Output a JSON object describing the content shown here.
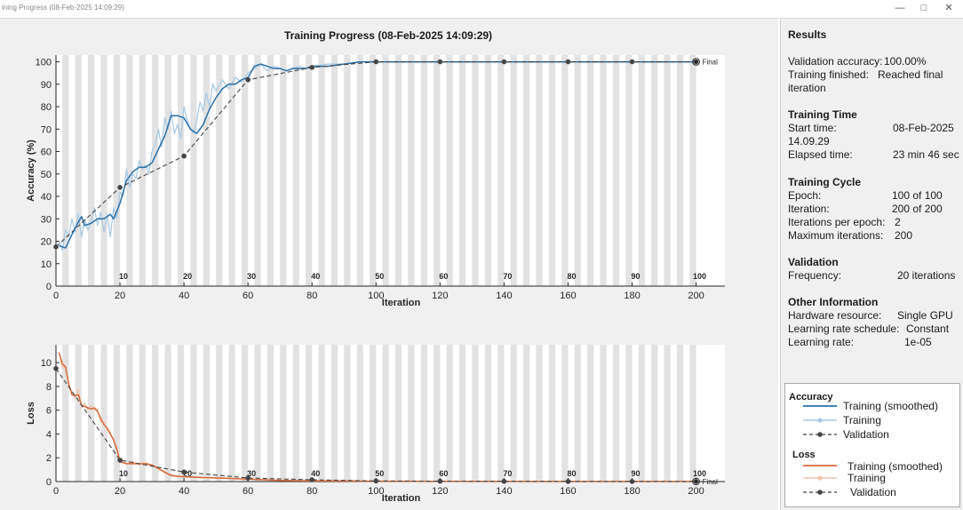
{
  "window": {
    "title": "ining Progress (08-Feb-2025 14:09:29)",
    "minimize_icon": "minimize-icon",
    "maximize_icon": "maximize-icon",
    "close_icon": "close-icon"
  },
  "chart_data": [
    {
      "type": "line",
      "title": "Training Progress (08-Feb-2025 14:09:29)",
      "xlabel": "Iteration",
      "ylabel": "Accuracy (%)",
      "xlim": [
        0,
        209
      ],
      "ylim": [
        0,
        103
      ],
      "xticks": [
        0,
        20,
        40,
        60,
        80,
        100,
        120,
        140,
        160,
        180,
        200
      ],
      "yticks": [
        0,
        10,
        20,
        30,
        40,
        50,
        60,
        70,
        80,
        90,
        100
      ],
      "epoch_labels": [
        "10",
        "20",
        "30",
        "40",
        "50",
        "60",
        "70",
        "80",
        "90",
        "100"
      ],
      "final_label": "Final",
      "grid": false,
      "series": [
        {
          "name": "Training (smoothed)",
          "color": "#2a6fa8",
          "x": [
            1,
            3,
            5,
            6,
            8,
            9,
            11,
            13,
            15,
            17,
            18,
            20,
            22,
            24,
            26,
            28,
            30,
            32,
            34,
            36,
            38,
            40,
            42,
            44,
            46,
            48,
            50,
            52,
            54,
            56,
            58,
            60,
            62,
            64,
            66,
            68,
            70,
            72,
            74,
            76,
            78,
            80,
            85,
            90,
            95,
            100,
            200
          ],
          "y": [
            18,
            17,
            23,
            26,
            31,
            27,
            28,
            30,
            30,
            32,
            30,
            37,
            47,
            51,
            53,
            53,
            55,
            61,
            67,
            76,
            76,
            75,
            70,
            68,
            72,
            79,
            84,
            88,
            90,
            90,
            92,
            93,
            98,
            99,
            98,
            97,
            97,
            96,
            97,
            97,
            97,
            98,
            98,
            99,
            100,
            100,
            100
          ]
        },
        {
          "name": "Training",
          "color": "#a6c8e4",
          "x": [
            1,
            2,
            3,
            4,
            5,
            6,
            7,
            8,
            9,
            10,
            11,
            12,
            13,
            14,
            15,
            16,
            17,
            18,
            19,
            20,
            21,
            22,
            23,
            24,
            25,
            26,
            27,
            28,
            29,
            30,
            31,
            32,
            33,
            34,
            35,
            36,
            37,
            38,
            39,
            40,
            41,
            42,
            43,
            44,
            45,
            46,
            47,
            48,
            49,
            50,
            52,
            54,
            56,
            58,
            60,
            62,
            64,
            66,
            68,
            70,
            72,
            74,
            76,
            78,
            80,
            85,
            90,
            95,
            100,
            200
          ],
          "y": [
            20,
            16,
            25,
            22,
            30,
            24,
            32,
            22,
            30,
            25,
            29,
            35,
            27,
            33,
            24,
            32,
            22,
            35,
            30,
            42,
            40,
            52,
            44,
            50,
            48,
            56,
            52,
            54,
            50,
            60,
            63,
            70,
            62,
            75,
            70,
            78,
            68,
            72,
            66,
            80,
            74,
            70,
            68,
            74,
            82,
            78,
            86,
            80,
            90,
            87,
            92,
            88,
            93,
            91,
            95,
            97,
            99,
            96,
            98,
            97,
            96,
            97,
            98,
            97,
            98,
            99,
            99,
            100,
            100,
            100
          ]
        },
        {
          "name": "Validation",
          "color": "#444444",
          "x": [
            0,
            20,
            40,
            60,
            80,
            100,
            120,
            140,
            160,
            180,
            200
          ],
          "y": [
            17.5,
            44,
            58,
            92,
            97.5,
            100,
            100,
            100,
            100,
            100,
            100
          ]
        }
      ]
    },
    {
      "type": "line",
      "xlabel": "Iteration",
      "ylabel": "Loss",
      "xlim": [
        0,
        209
      ],
      "ylim": [
        0,
        11.5
      ],
      "xticks": [
        0,
        20,
        40,
        60,
        80,
        100,
        120,
        140,
        160,
        180,
        200
      ],
      "yticks": [
        0,
        2,
        4,
        6,
        8,
        10
      ],
      "epoch_labels": [
        "10",
        "20",
        "30",
        "40",
        "50",
        "60",
        "70",
        "80",
        "90",
        "100"
      ],
      "final_label": "Final",
      "grid": false,
      "series": [
        {
          "name": "Training (smoothed)",
          "color": "#d4693a",
          "x": [
            1,
            2,
            3,
            4,
            5,
            6,
            7,
            8,
            9,
            10,
            11,
            12,
            13,
            14,
            15,
            16,
            17,
            18,
            19,
            20,
            22,
            24,
            26,
            28,
            30,
            32,
            34,
            36,
            38,
            40,
            45,
            50,
            60,
            70,
            80,
            100,
            120,
            150,
            200
          ],
          "y": [
            10.8,
            9.9,
            9.6,
            8.2,
            7.3,
            7.2,
            7.3,
            6.4,
            6.3,
            6.2,
            6.1,
            6.2,
            5.9,
            5.3,
            4.8,
            4.5,
            4.0,
            3.5,
            2.7,
            1.7,
            1.5,
            1.5,
            1.5,
            1.5,
            1.4,
            1.1,
            0.8,
            0.5,
            0.45,
            0.4,
            0.35,
            0.3,
            0.2,
            0.1,
            0.05,
            0.03,
            0.02,
            0.01,
            0.01
          ]
        },
        {
          "name": "Training",
          "color": "#f0c4ad",
          "x": [
            1,
            2,
            3,
            4,
            5,
            6,
            7,
            8,
            9,
            10,
            11,
            12,
            13,
            14,
            15,
            16,
            17,
            18,
            19,
            20,
            22,
            24,
            26,
            28,
            30,
            32,
            34,
            36,
            38,
            40,
            45,
            50,
            60,
            70,
            80,
            100,
            120,
            150,
            200
          ],
          "y": [
            10.9,
            9.5,
            9.8,
            8.0,
            7.6,
            7.0,
            7.8,
            6.2,
            6.6,
            6.0,
            6.4,
            6.0,
            6.1,
            5.0,
            5.0,
            4.3,
            4.1,
            3.4,
            2.9,
            1.6,
            1.5,
            1.7,
            1.4,
            1.6,
            1.3,
            1.2,
            0.7,
            0.6,
            0.4,
            0.45,
            0.3,
            0.35,
            0.2,
            0.12,
            0.05,
            0.03,
            0.02,
            0.01,
            0.01
          ]
        },
        {
          "name": "Validation",
          "color": "#444444",
          "x": [
            0,
            20,
            40,
            60,
            80,
            100,
            120,
            140,
            160,
            180,
            200
          ],
          "y": [
            9.5,
            1.8,
            0.8,
            0.3,
            0.15,
            0.05,
            0.03,
            0.02,
            0.01,
            0.01,
            0.01
          ]
        }
      ]
    }
  ],
  "results": {
    "title": "Results",
    "validation_accuracy_label": "Validation accuracy:",
    "validation_accuracy_value": "100.00%",
    "training_finished_label": "Training finished:",
    "training_finished_value": "Reached final",
    "training_finished_value2": "iteration",
    "training_time_title": "Training Time",
    "start_time_label": "Start time:",
    "start_time_value": "08-Feb-2025",
    "start_time_value2": "14.09.29",
    "elapsed_time_label": "Elapsed time:",
    "elapsed_time_value": "23 min 46 sec",
    "training_cycle_title": "Training Cycle",
    "epoch_label": "Epoch:",
    "epoch_value": "100 of 100",
    "iteration_label": "Iteration:",
    "iteration_value": "200 of 200",
    "iter_per_epoch_label": "Iterations per epoch:",
    "iter_per_epoch_value": "2",
    "max_iter_label": "Maximum iterations:",
    "max_iter_value": "200",
    "validation_title": "Validation",
    "frequency_label": "Frequency:",
    "frequency_value": "20 iterations",
    "other_title": "Other Information",
    "hardware_label": "Hardware resource:",
    "hardware_value": "Single GPU",
    "lr_schedule_label": "Learning rate schedule:",
    "lr_schedule_value": "Constant",
    "lr_label": "Learning rate:",
    "lr_value": "1e-05"
  },
  "legend": {
    "accuracy_title": "Accuracy",
    "loss_title": "Loss",
    "acc_smoothed": "Training (smoothed)",
    "acc_training": "Training",
    "acc_validation": "Validation",
    "loss_smoothed": "Training (smoothed)",
    "loss_training": "Training",
    "loss_validation": "Validation"
  }
}
